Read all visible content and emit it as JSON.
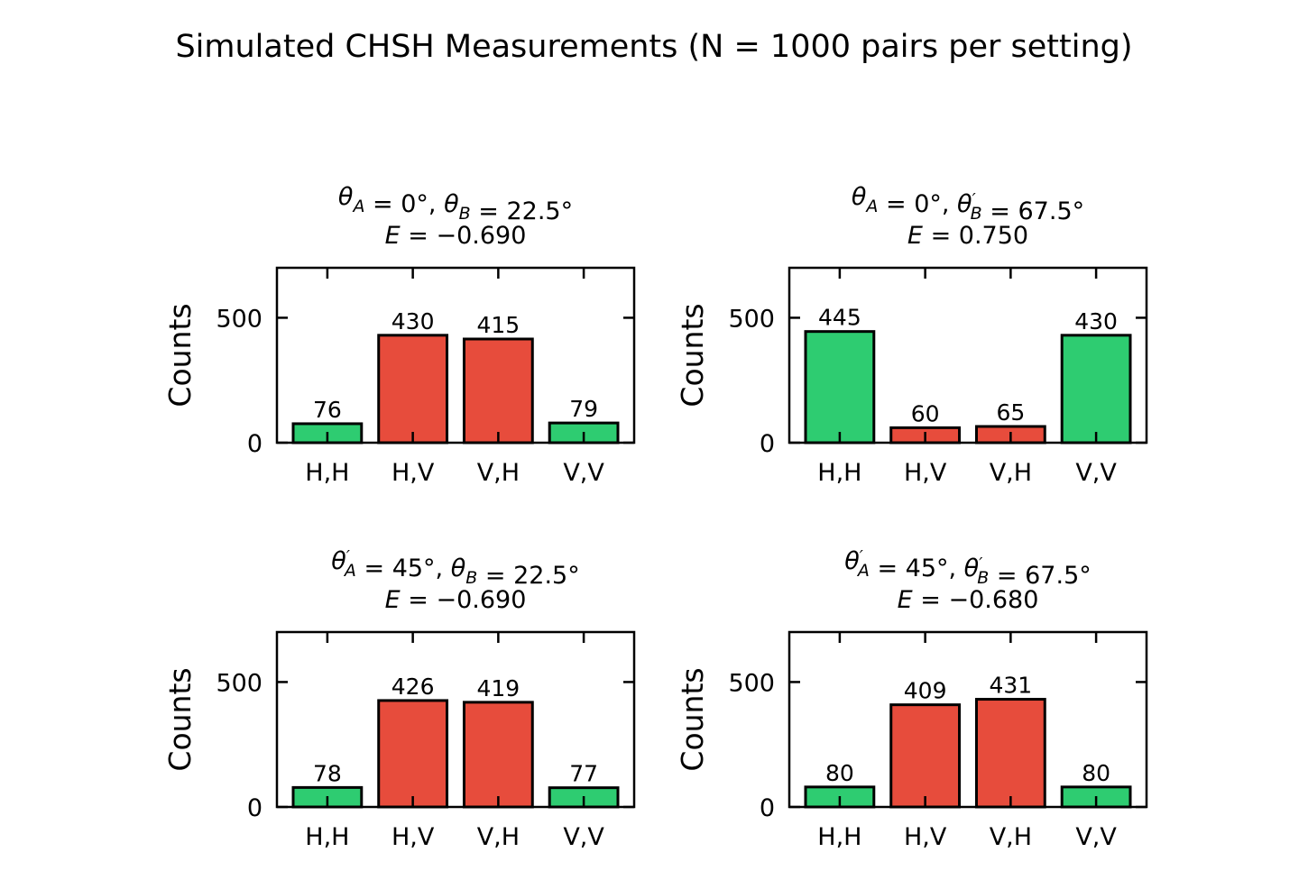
{
  "chart_data": [
    {
      "type": "bar",
      "title_line1": "θA = 0°, θB = 22.5°",
      "title_parts": [
        {
          "sym": "θ",
          "sub": "A",
          "prime": false
        },
        {
          "text": " = 0°, "
        },
        {
          "sym": "θ",
          "sub": "B",
          "prime": false
        },
        {
          "text": " = 22.5°"
        }
      ],
      "title_line2": "E = −0.690",
      "categories": [
        "H,H",
        "H,V",
        "V,H",
        "V,V"
      ],
      "values": [
        76,
        430,
        415,
        79
      ],
      "bar_colors": [
        "#2ecc71",
        "#e74c3c",
        "#e74c3c",
        "#2ecc71"
      ],
      "ylabel": "Counts",
      "yticks": [
        0,
        500
      ],
      "ylim": [
        0,
        700
      ]
    },
    {
      "type": "bar",
      "title_line1": "θA = 0°, θ'B = 67.5°",
      "title_parts": [
        {
          "sym": "θ",
          "sub": "A",
          "prime": false
        },
        {
          "text": " = 0°, "
        },
        {
          "sym": "θ",
          "sub": "B",
          "prime": true
        },
        {
          "text": " = 67.5°"
        }
      ],
      "title_line2": "E = 0.750",
      "categories": [
        "H,H",
        "H,V",
        "V,H",
        "V,V"
      ],
      "values": [
        445,
        60,
        65,
        430
      ],
      "bar_colors": [
        "#2ecc71",
        "#e74c3c",
        "#e74c3c",
        "#2ecc71"
      ],
      "ylabel": "Counts",
      "yticks": [
        0,
        500
      ],
      "ylim": [
        0,
        700
      ]
    },
    {
      "type": "bar",
      "title_line1": "θ'A = 45°, θB = 22.5°",
      "title_parts": [
        {
          "sym": "θ",
          "sub": "A",
          "prime": true
        },
        {
          "text": " = 45°, "
        },
        {
          "sym": "θ",
          "sub": "B",
          "prime": false
        },
        {
          "text": " = 22.5°"
        }
      ],
      "title_line2": "E = −0.690",
      "categories": [
        "H,H",
        "H,V",
        "V,H",
        "V,V"
      ],
      "values": [
        78,
        426,
        419,
        77
      ],
      "bar_colors": [
        "#2ecc71",
        "#e74c3c",
        "#e74c3c",
        "#2ecc71"
      ],
      "ylabel": "Counts",
      "yticks": [
        0,
        500
      ],
      "ylim": [
        0,
        700
      ]
    },
    {
      "type": "bar",
      "title_line1": "θ'A = 45°, θ'B = 67.5°",
      "title_parts": [
        {
          "sym": "θ",
          "sub": "A",
          "prime": true
        },
        {
          "text": " = 45°, "
        },
        {
          "sym": "θ",
          "sub": "B",
          "prime": true
        },
        {
          "text": " = 67.5°"
        }
      ],
      "title_line2": "E = −0.680",
      "categories": [
        "H,H",
        "H,V",
        "V,H",
        "V,V"
      ],
      "values": [
        80,
        409,
        431,
        80
      ],
      "bar_colors": [
        "#2ecc71",
        "#e74c3c",
        "#e74c3c",
        "#2ecc71"
      ],
      "ylabel": "Counts",
      "yticks": [
        0,
        500
      ],
      "ylim": [
        0,
        700
      ]
    }
  ],
  "figure": {
    "suptitle": "Simulated CHSH Measurements (N = 1000 pairs per setting)"
  }
}
